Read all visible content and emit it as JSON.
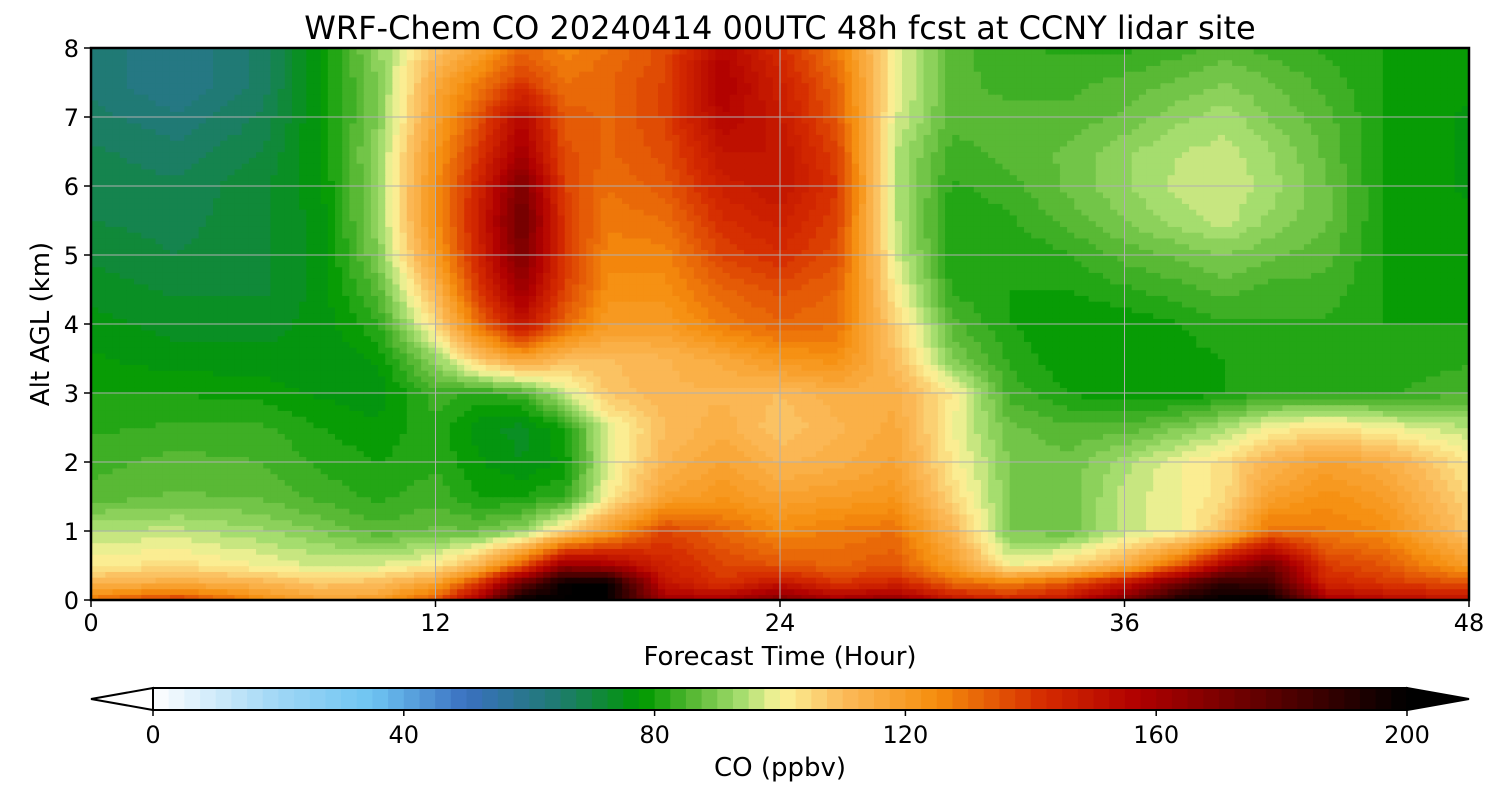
{
  "chart_data": {
    "type": "heatmap",
    "title": "WRF-Chem CO  20240414 00UTC 48h fcst at CCNY lidar site",
    "xlabel": "Forecast Time (Hour)",
    "ylabel": "Alt AGL (km)",
    "xlim": [
      0,
      48
    ],
    "ylim": [
      0,
      8
    ],
    "xticks": [
      0,
      12,
      24,
      36,
      48
    ],
    "yticks": [
      0,
      1,
      2,
      3,
      4,
      5,
      6,
      7,
      8
    ],
    "grid": true,
    "colorbar": {
      "label": "CO  (ppbv)",
      "vmin": 0,
      "vmax": 200,
      "ticks": [
        0,
        40,
        80,
        120,
        160,
        200
      ],
      "extend": "both",
      "colors": [
        "#ffffff",
        "#9fd6f5",
        "#6ec4f2",
        "#3a70c0",
        "#1e7b6e",
        "#009900",
        "#56b833",
        "#a8de70",
        "#fbf49a",
        "#fbbb5a",
        "#f58d0d",
        "#d52b00",
        "#b00000",
        "#5c0000",
        "#000000"
      ],
      "color_stops": [
        0,
        20,
        35,
        50,
        65,
        78,
        86,
        94,
        100,
        110,
        125,
        142,
        157,
        178,
        200
      ]
    },
    "x": [
      0,
      3,
      6,
      8,
      10,
      12,
      13.5,
      15,
      16.5,
      18,
      20,
      22,
      24,
      26,
      28,
      30,
      32,
      34,
      36,
      38,
      39.5,
      41,
      43,
      45,
      48
    ],
    "y": [
      0,
      0.25,
      0.5,
      1,
      1.5,
      2,
      2.5,
      3,
      3.5,
      4,
      4.5,
      5,
      5.5,
      6,
      6.5,
      7,
      7.5,
      8
    ],
    "z": [
      [
        130,
        140,
        125,
        118,
        120,
        135,
        160,
        200,
        200,
        200,
        160,
        160,
        170,
        160,
        165,
        150,
        145,
        150,
        170,
        195,
        200,
        200,
        160,
        155,
        150
      ],
      [
        112,
        115,
        112,
        108,
        110,
        118,
        140,
        175,
        200,
        200,
        150,
        140,
        150,
        140,
        145,
        132,
        128,
        135,
        150,
        175,
        190,
        185,
        145,
        140,
        135
      ],
      [
        102,
        104,
        100,
        97,
        98,
        102,
        112,
        135,
        165,
        160,
        145,
        138,
        135,
        132,
        135,
        120,
        100,
        105,
        115,
        135,
        160,
        175,
        140,
        135,
        120
      ],
      [
        95,
        96,
        93,
        90,
        86,
        88,
        88,
        92,
        105,
        120,
        138,
        132,
        125,
        128,
        130,
        112,
        90,
        88,
        96,
        100,
        110,
        130,
        128,
        125,
        108
      ],
      [
        86,
        88,
        87,
        84,
        82,
        84,
        80,
        80,
        83,
        100,
        118,
        122,
        118,
        120,
        122,
        105,
        90,
        88,
        96,
        100,
        104,
        118,
        124,
        120,
        105
      ],
      [
        84,
        86,
        85,
        82,
        80,
        82,
        78,
        75,
        78,
        98,
        112,
        118,
        112,
        114,
        118,
        102,
        90,
        88,
        94,
        100,
        104,
        112,
        118,
        115,
        102
      ],
      [
        82,
        83,
        83,
        80,
        78,
        82,
        76,
        74,
        80,
        98,
        110,
        114,
        108,
        112,
        116,
        100,
        88,
        86,
        86,
        90,
        94,
        100,
        104,
        100,
        95
      ],
      [
        80,
        80,
        79,
        77,
        76,
        84,
        82,
        84,
        96,
        108,
        112,
        112,
        110,
        114,
        114,
        102,
        84,
        80,
        78,
        78,
        80,
        82,
        82,
        82,
        85
      ],
      [
        78,
        76,
        76,
        75,
        78,
        92,
        108,
        118,
        110,
        110,
        112,
        116,
        122,
        124,
        110,
        90,
        82,
        78,
        78,
        79,
        80,
        80,
        80,
        80,
        82
      ],
      [
        76,
        74,
        74,
        76,
        82,
        104,
        130,
        150,
        132,
        120,
        120,
        128,
        132,
        130,
        106,
        86,
        80,
        78,
        78,
        80,
        82,
        82,
        82,
        80,
        80
      ],
      [
        74,
        72,
        72,
        76,
        86,
        112,
        140,
        162,
        138,
        124,
        124,
        132,
        136,
        132,
        102,
        82,
        80,
        80,
        82,
        84,
        86,
        84,
        84,
        80,
        78
      ],
      [
        72,
        70,
        72,
        76,
        90,
        120,
        145,
        170,
        140,
        126,
        126,
        138,
        142,
        136,
        98,
        80,
        80,
        82,
        86,
        88,
        90,
        88,
        86,
        80,
        78
      ],
      [
        70,
        69,
        72,
        76,
        92,
        124,
        146,
        175,
        140,
        128,
        130,
        142,
        146,
        138,
        96,
        80,
        82,
        86,
        90,
        94,
        96,
        92,
        88,
        80,
        78
      ],
      [
        69,
        68,
        72,
        77,
        92,
        124,
        145,
        170,
        138,
        130,
        134,
        146,
        150,
        140,
        95,
        82,
        84,
        88,
        92,
        96,
        97,
        94,
        88,
        80,
        77
      ],
      [
        68,
        66,
        70,
        78,
        92,
        122,
        140,
        160,
        136,
        132,
        136,
        150,
        150,
        138,
        95,
        84,
        86,
        88,
        92,
        95,
        96,
        93,
        87,
        80,
        77
      ],
      [
        66,
        63,
        68,
        78,
        90,
        118,
        135,
        155,
        134,
        132,
        138,
        155,
        148,
        134,
        98,
        86,
        86,
        86,
        88,
        92,
        94,
        90,
        86,
        80,
        77
      ],
      [
        64,
        60,
        66,
        78,
        90,
        116,
        128,
        140,
        130,
        132,
        138,
        158,
        146,
        132,
        100,
        86,
        84,
        84,
        86,
        88,
        90,
        88,
        84,
        80,
        78
      ],
      [
        64,
        60,
        66,
        78,
        92,
        108,
        118,
        132,
        126,
        130,
        136,
        155,
        142,
        128,
        100,
        86,
        83,
        82,
        82,
        84,
        86,
        84,
        82,
        80,
        78
      ]
    ]
  }
}
